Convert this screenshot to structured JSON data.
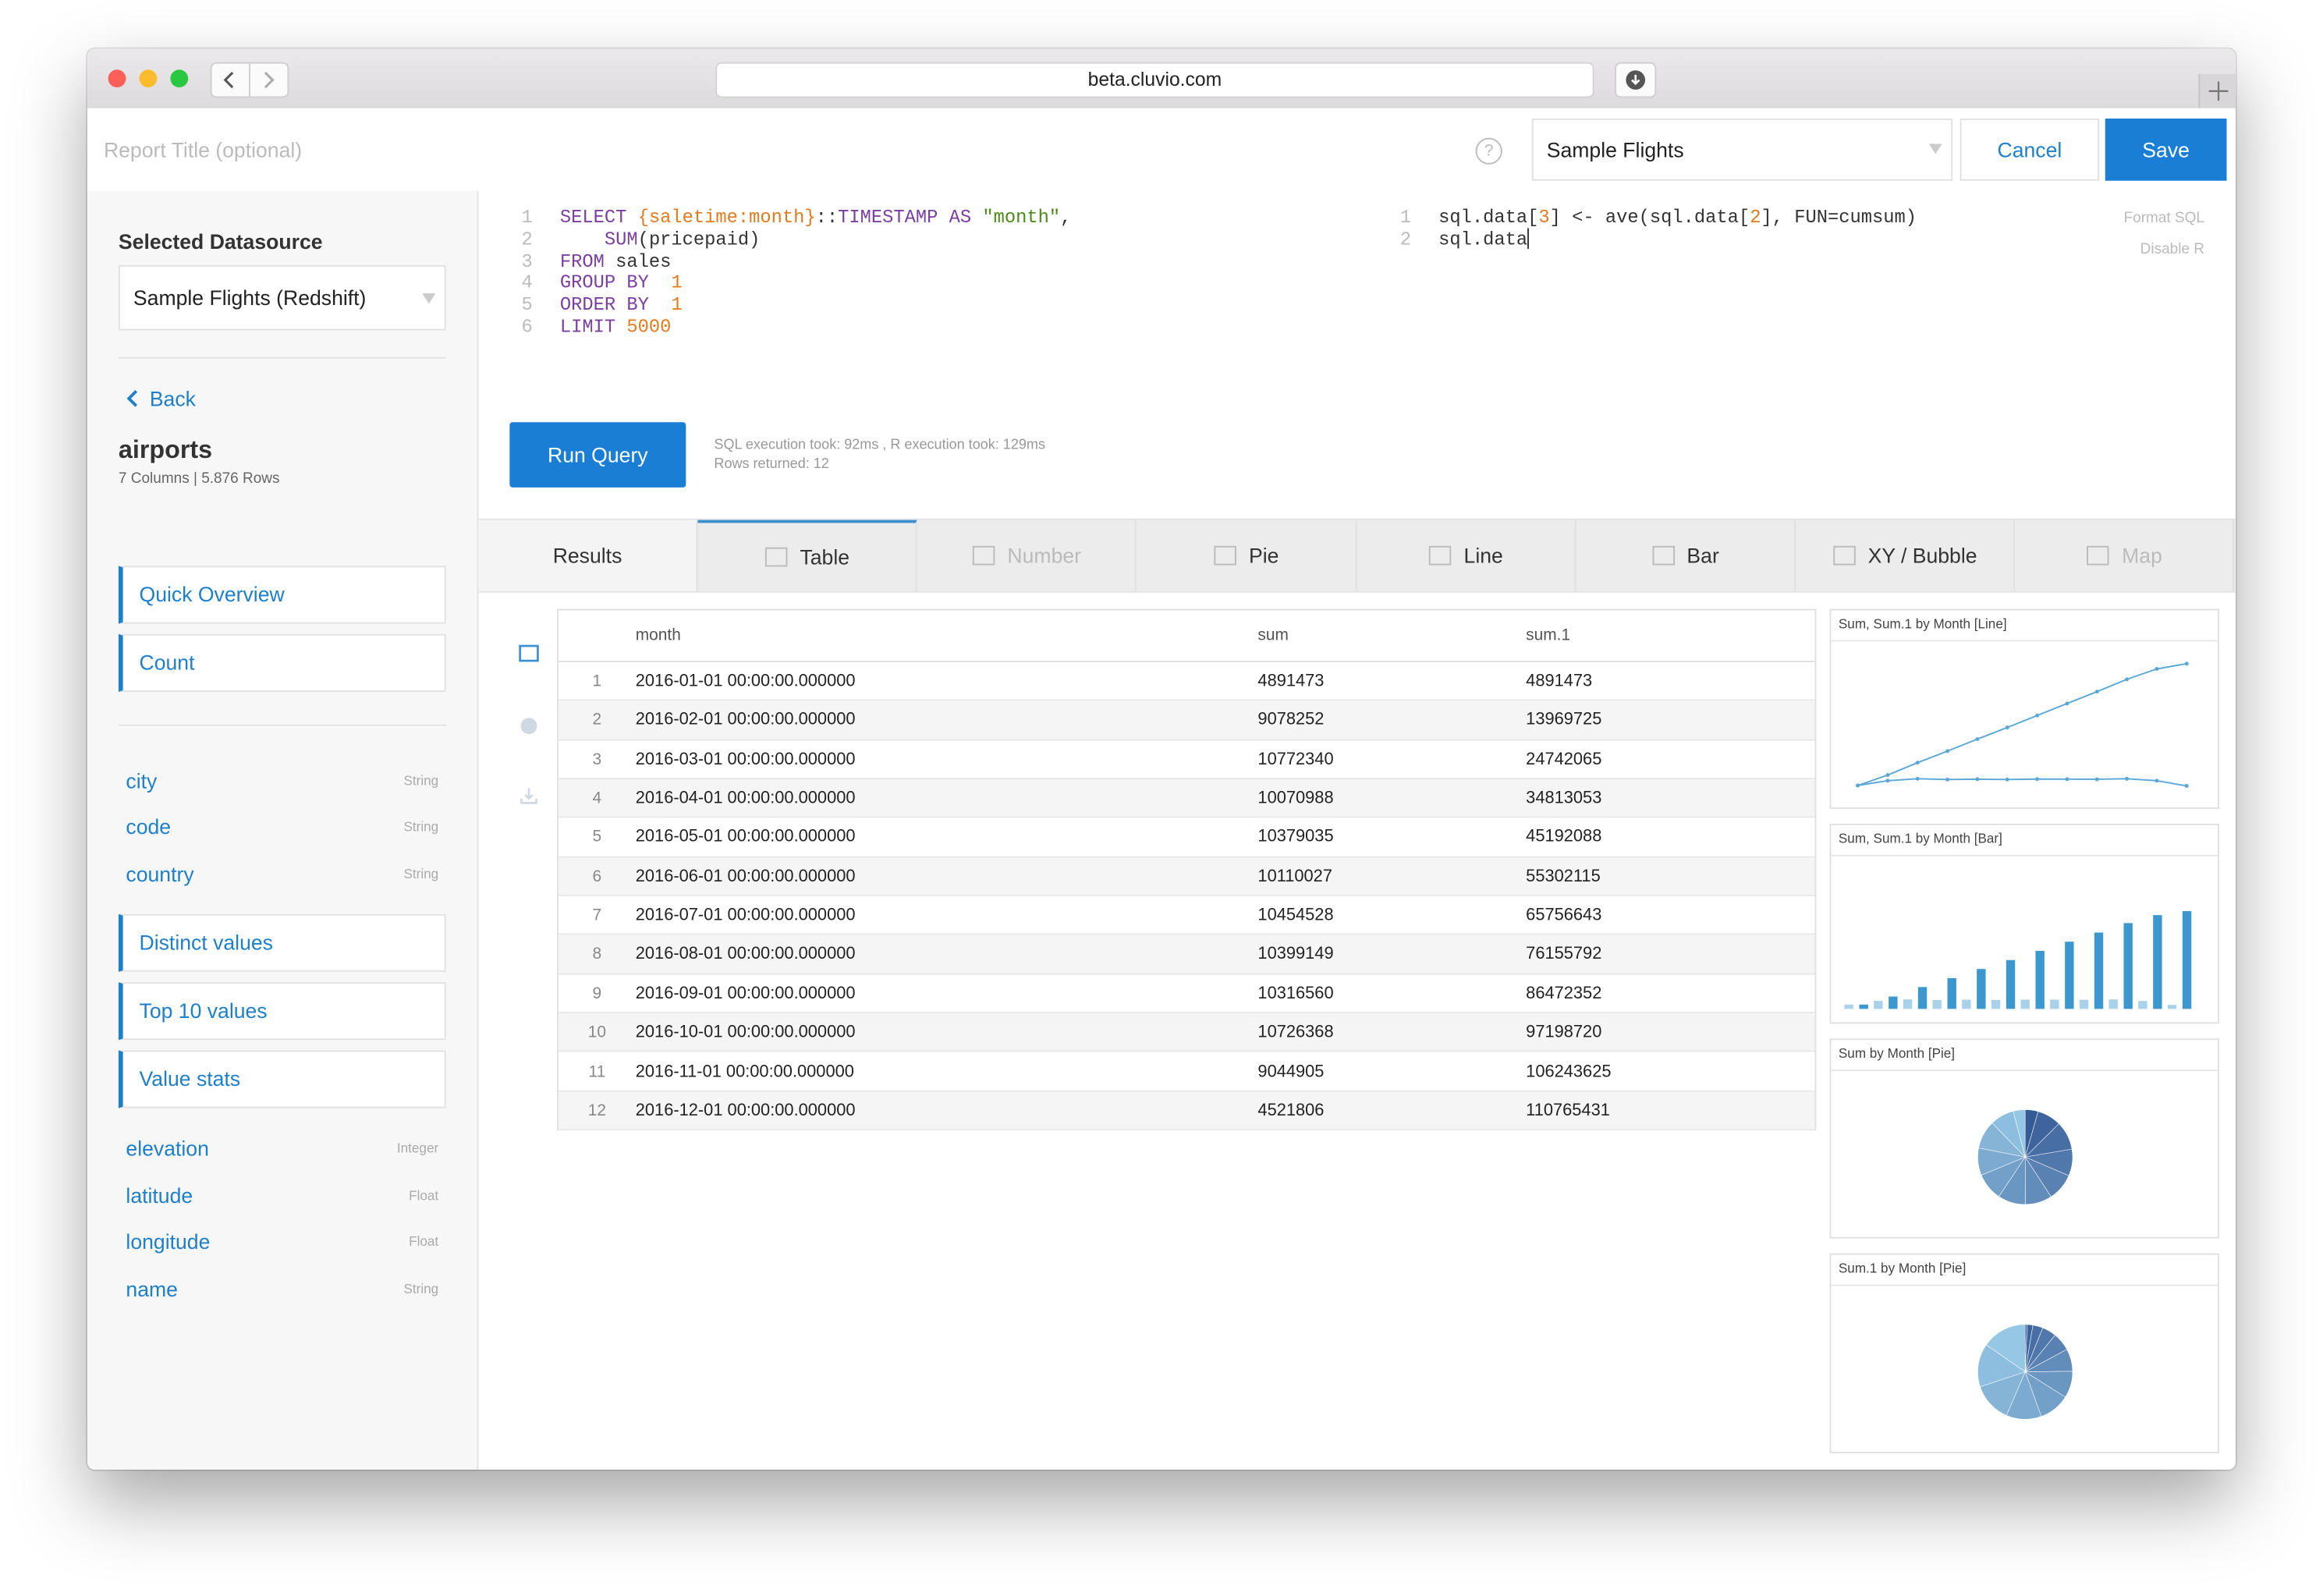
{
  "browser": {
    "url": "beta.cluvio.com"
  },
  "toolbar": {
    "report_title_placeholder": "Report Title (optional)",
    "help": "?",
    "datasource": "Sample Flights",
    "cancel": "Cancel",
    "save": "Save"
  },
  "sidebar": {
    "title": "Selected Datasource",
    "datasource": "Sample Flights (Redshift)",
    "back": "Back",
    "table_name": "airports",
    "table_meta": "7 Columns | 5.876 Rows",
    "actions_top": [
      "Quick Overview",
      "Count"
    ],
    "fields_a": [
      {
        "name": "city",
        "type": "String"
      },
      {
        "name": "code",
        "type": "String"
      },
      {
        "name": "country",
        "type": "String"
      }
    ],
    "actions_mid": [
      "Distinct values",
      "Top 10 values",
      "Value stats"
    ],
    "fields_b": [
      {
        "name": "elevation",
        "type": "Integer"
      },
      {
        "name": "latitude",
        "type": "Float"
      },
      {
        "name": "longitude",
        "type": "Float"
      },
      {
        "name": "name",
        "type": "String"
      }
    ]
  },
  "editor": {
    "sql": [
      {
        "n": 1,
        "code": "SELECT {saletime:month}::TIMESTAMP AS \"month\","
      },
      {
        "n": 2,
        "code": "    SUM(pricepaid)"
      },
      {
        "n": 3,
        "code": "FROM sales"
      },
      {
        "n": 4,
        "code": "GROUP BY  1"
      },
      {
        "n": 5,
        "code": "ORDER BY  1"
      },
      {
        "n": 6,
        "code": "LIMIT 5000"
      }
    ],
    "r": [
      {
        "n": 1,
        "code": "sql.data[3] <- ave(sql.data[2], FUN=cumsum)"
      },
      {
        "n": 2,
        "code": "sql.data"
      }
    ],
    "format_sql": "Format SQL",
    "disable_r": "Disable R"
  },
  "run": {
    "button": "Run Query",
    "timing": "SQL execution took: 92ms , R execution took: 129ms",
    "rows": "Rows returned: 12"
  },
  "tabs": [
    "Results",
    "Table",
    "Number",
    "Pie",
    "Line",
    "Bar",
    "XY / Bubble",
    "Map"
  ],
  "table": {
    "columns": [
      "month",
      "sum",
      "sum.1"
    ],
    "rows": [
      [
        1,
        "2016-01-01 00:00:00.000000",
        4891473,
        4891473
      ],
      [
        2,
        "2016-02-01 00:00:00.000000",
        9078252,
        13969725
      ],
      [
        3,
        "2016-03-01 00:00:00.000000",
        10772340,
        24742065
      ],
      [
        4,
        "2016-04-01 00:00:00.000000",
        10070988,
        34813053
      ],
      [
        5,
        "2016-05-01 00:00:00.000000",
        10379035,
        45192088
      ],
      [
        6,
        "2016-06-01 00:00:00.000000",
        10110027,
        55302115
      ],
      [
        7,
        "2016-07-01 00:00:00.000000",
        10454528,
        65756643
      ],
      [
        8,
        "2016-08-01 00:00:00.000000",
        10399149,
        76155792
      ],
      [
        9,
        "2016-09-01 00:00:00.000000",
        10316560,
        86472352
      ],
      [
        10,
        "2016-10-01 00:00:00.000000",
        10726368,
        97198720
      ],
      [
        11,
        "2016-11-01 00:00:00.000000",
        9044905,
        106243625
      ],
      [
        12,
        "2016-12-01 00:00:00.000000",
        4521806,
        110765431
      ]
    ]
  },
  "thumbnails": [
    {
      "title": "Sum, Sum.1 by Month [Line]",
      "type": "line"
    },
    {
      "title": "Sum, Sum.1 by Month [Bar]",
      "type": "bar"
    },
    {
      "title": "Sum by Month [Pie]",
      "type": "pie",
      "column": 2
    },
    {
      "title": "Sum.1 by Month [Pie]",
      "type": "pie",
      "column": 3
    }
  ]
}
